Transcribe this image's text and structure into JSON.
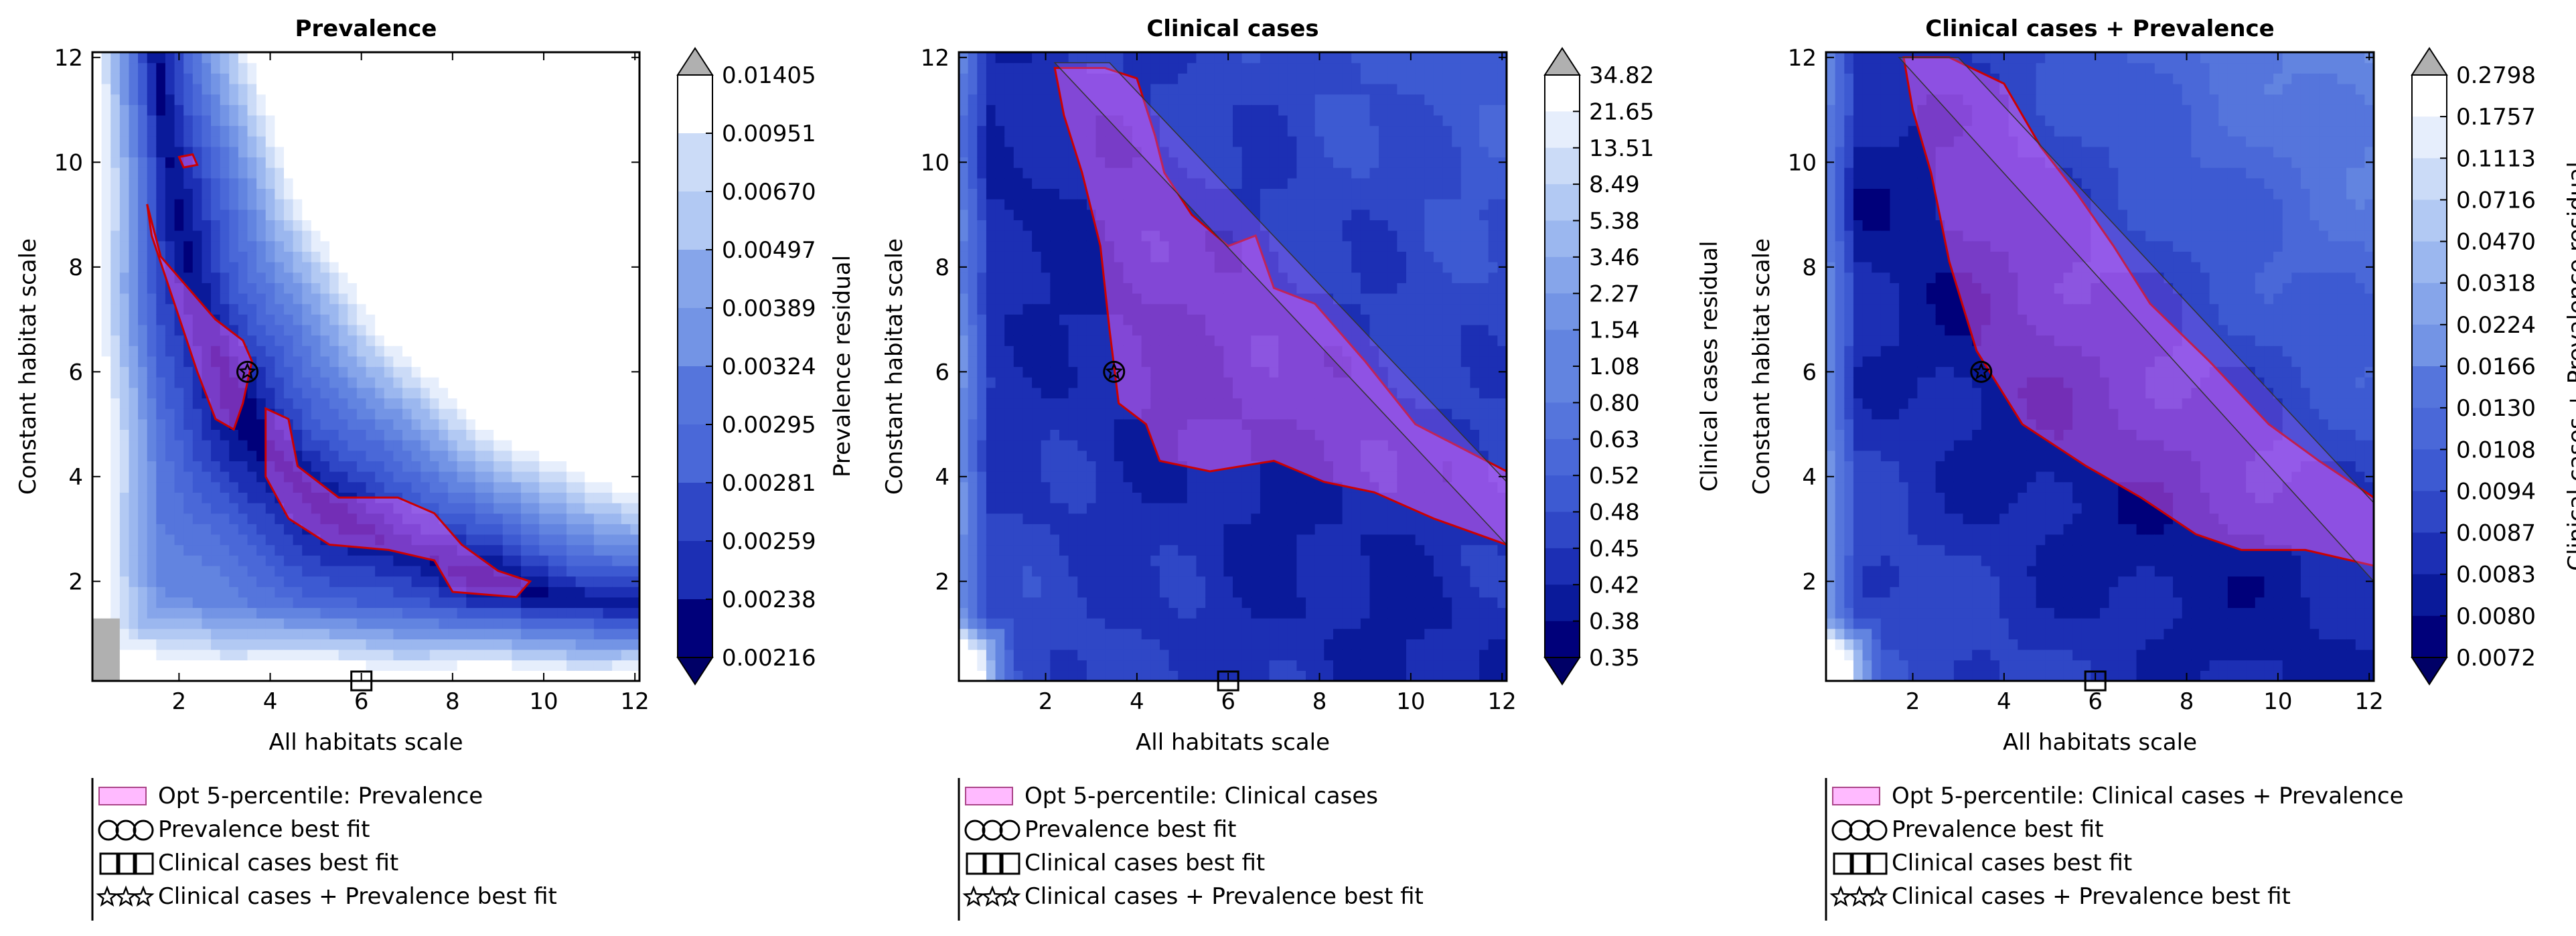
{
  "colors": {
    "contour_levels": [
      "#00007a",
      "#0a1a9a",
      "#1c2fb4",
      "#2f47c6",
      "#3d5ad2",
      "#4a68d8",
      "#5575dc",
      "#6284e0",
      "#7394e5",
      "#86a5ea",
      "#9bb7ef",
      "#b2c9f3",
      "#cbdbf7",
      "#e6eefc",
      "#ffffff"
    ],
    "extend_low": "#000066",
    "extend_high": "#b0b0b0",
    "opt_region_fill": "#ff66ff",
    "opt_region_edge": "#cc0000"
  },
  "chart_data": [
    {
      "type": "contour",
      "title": "Prevalence",
      "xlabel": "All habitats scale",
      "ylabel": "Constant habitat scale",
      "xlim": [
        0.1,
        12.1
      ],
      "ylim": [
        0.1,
        12.1
      ],
      "xticks": [
        "2",
        "4",
        "6",
        "8",
        "10",
        "12"
      ],
      "yticks": [
        "2",
        "4",
        "6",
        "8",
        "10",
        "12"
      ],
      "colorbar_label": "Prevalence residual",
      "colorbar_ticks": [
        "0.01405",
        "0.00951",
        "0.00670",
        "0.00497",
        "0.00389",
        "0.00324",
        "0.00295",
        "0.00281",
        "0.00259",
        "0.00238",
        "0.00216"
      ],
      "best_fits": {
        "prevalence": [
          3.5,
          6.0
        ],
        "clinical_cases": [
          6.0,
          0.1
        ],
        "combined": [
          3.5,
          6.0
        ]
      },
      "legend": [
        {
          "marker": "patch",
          "label": "Opt 5-percentile: Prevalence"
        },
        {
          "marker": "circle",
          "label": "Prevalence best fit"
        },
        {
          "marker": "square",
          "label": "Clinical cases best fit"
        },
        {
          "marker": "star",
          "label": "Clinical cases + Prevalence best fit"
        }
      ]
    },
    {
      "type": "contour",
      "title": "Clinical cases",
      "xlabel": "All habitats scale",
      "ylabel": "Constant habitat scale",
      "xlim": [
        0.1,
        12.1
      ],
      "ylim": [
        0.1,
        12.1
      ],
      "xticks": [
        "2",
        "4",
        "6",
        "8",
        "10",
        "12"
      ],
      "yticks": [
        "2",
        "4",
        "6",
        "8",
        "10",
        "12"
      ],
      "colorbar_label": "Clinical cases residual",
      "colorbar_ticks": [
        "34.82",
        "21.65",
        "13.51",
        "8.49",
        "5.38",
        "3.46",
        "2.27",
        "1.54",
        "1.08",
        "0.80",
        "0.63",
        "0.52",
        "0.48",
        "0.45",
        "0.42",
        "0.38",
        "0.35"
      ],
      "best_fits": {
        "prevalence": [
          3.5,
          6.0
        ],
        "clinical_cases": [
          6.0,
          0.1
        ],
        "combined": [
          3.5,
          6.0
        ]
      },
      "legend": [
        {
          "marker": "patch",
          "label": "Opt 5-percentile: Clinical cases"
        },
        {
          "marker": "circle",
          "label": "Prevalence best fit"
        },
        {
          "marker": "square",
          "label": "Clinical cases best fit"
        },
        {
          "marker": "star",
          "label": "Clinical cases + Prevalence best fit"
        }
      ]
    },
    {
      "type": "contour",
      "title": "Clinical cases + Prevalence",
      "xlabel": "All habitats scale",
      "ylabel": "Constant habitat scale",
      "xlim": [
        0.1,
        12.1
      ],
      "ylim": [
        0.1,
        12.1
      ],
      "xticks": [
        "2",
        "4",
        "6",
        "8",
        "10",
        "12"
      ],
      "yticks": [
        "2",
        "4",
        "6",
        "8",
        "10",
        "12"
      ],
      "colorbar_label": "Clinical cases + Prevalence residual",
      "colorbar_ticks": [
        "0.2798",
        "0.1757",
        "0.1113",
        "0.0716",
        "0.0470",
        "0.0318",
        "0.0224",
        "0.0166",
        "0.0130",
        "0.0108",
        "0.0094",
        "0.0087",
        "0.0083",
        "0.0080",
        "0.0072"
      ],
      "best_fits": {
        "prevalence": [
          3.5,
          6.0
        ],
        "clinical_cases": [
          6.0,
          0.1
        ],
        "combined": [
          3.5,
          6.0
        ]
      },
      "legend": [
        {
          "marker": "patch",
          "label": "Opt 5-percentile: Clinical cases + Prevalence"
        },
        {
          "marker": "circle",
          "label": "Prevalence best fit"
        },
        {
          "marker": "square",
          "label": "Clinical cases best fit"
        },
        {
          "marker": "star",
          "label": "Clinical cases + Prevalence best fit"
        }
      ]
    }
  ]
}
